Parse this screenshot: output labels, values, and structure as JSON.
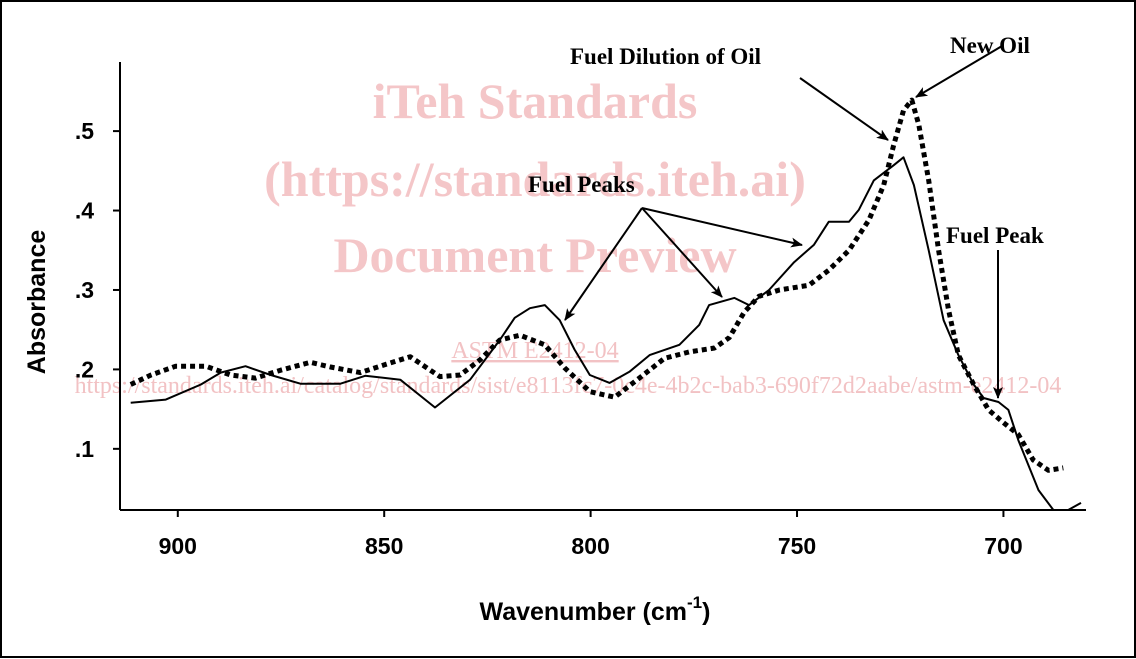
{
  "chart_data": {
    "type": "line",
    "x_label": [
      "Wavenumber (cm",
      "-1",
      ")"
    ],
    "y_label": "Absorbance",
    "xlim": [
      914,
      680
    ],
    "ylim": [
      0.023,
      0.587
    ],
    "xticks": [
      900,
      850,
      800,
      750,
      700
    ],
    "yticks": [
      {
        "value": 0.1,
        "label": ".1"
      },
      {
        "value": 0.2,
        "label": ".2"
      },
      {
        "value": 0.3,
        "label": ".3"
      },
      {
        "value": 0.4,
        "label": ".4"
      },
      {
        "value": 0.5,
        "label": ".5"
      }
    ],
    "grid": false,
    "series": [
      {
        "style": "solid",
        "color": "#000000",
        "x": [
          911.4,
          902.9,
          894.4,
          889.6,
          883.6,
          877.5,
          870.3,
          860.6,
          854.6,
          846.1,
          837.7,
          829.2,
          822.0,
          818.4,
          814.7,
          811.1,
          807.5,
          803.9,
          800.2,
          795.4,
          790.6,
          785.7,
          778.5,
          773.7,
          771.3,
          765.2,
          761.6,
          756.8,
          750.7,
          745.9,
          742.3,
          737.4,
          735.0,
          731.4,
          726.6,
          724.2,
          721.7,
          718.1,
          714.5,
          710.9,
          707.2,
          704.8,
          701.2,
          698.8,
          696.4,
          691.5,
          687.9,
          684.3,
          681.2
        ],
        "values": [
          0.158,
          0.162,
          0.181,
          0.196,
          0.204,
          0.193,
          0.182,
          0.182,
          0.192,
          0.187,
          0.152,
          0.187,
          0.237,
          0.265,
          0.277,
          0.281,
          0.262,
          0.225,
          0.193,
          0.183,
          0.197,
          0.218,
          0.231,
          0.256,
          0.281,
          0.29,
          0.281,
          0.3,
          0.335,
          0.357,
          0.386,
          0.386,
          0.401,
          0.438,
          0.457,
          0.467,
          0.432,
          0.35,
          0.262,
          0.218,
          0.181,
          0.164,
          0.159,
          0.149,
          0.111,
          0.048,
          0.023,
          0.023,
          0.032
        ]
      },
      {
        "style": "dotted",
        "color": "#000000",
        "x": [
          911.4,
          906.5,
          900.5,
          893.2,
          887.2,
          881.2,
          875.1,
          867.9,
          863.0,
          855.8,
          849.8,
          843.7,
          836.5,
          831.6,
          826.8,
          822.0,
          817.1,
          811.1,
          806.3,
          800.2,
          794.2,
          788.2,
          782.1,
          776.1,
          770.0,
          766.4,
          762.8,
          759.2,
          754.3,
          747.1,
          742.3,
          737.4,
          732.6,
          729.0,
          726.6,
          724.2,
          722.2,
          720.5,
          718.1,
          715.7,
          713.3,
          710.9,
          707.2,
          703.6,
          700.0,
          696.4,
          692.8,
          689.1,
          685.5
        ],
        "values": [
          0.181,
          0.193,
          0.204,
          0.204,
          0.193,
          0.189,
          0.199,
          0.209,
          0.203,
          0.196,
          0.206,
          0.216,
          0.191,
          0.193,
          0.212,
          0.237,
          0.243,
          0.231,
          0.202,
          0.172,
          0.165,
          0.189,
          0.214,
          0.222,
          0.227,
          0.24,
          0.272,
          0.292,
          0.3,
          0.306,
          0.325,
          0.35,
          0.388,
          0.432,
          0.482,
          0.526,
          0.539,
          0.508,
          0.438,
          0.35,
          0.275,
          0.218,
          0.181,
          0.149,
          0.133,
          0.118,
          0.086,
          0.073,
          0.076
        ]
      }
    ],
    "annotations": [
      "Fuel Dilution of Oil",
      "New Oil",
      "Fuel Peaks",
      "Fuel Peak"
    ]
  },
  "watermark": [
    "iTeh Standards",
    "(https://standards.iteh.ai)",
    "Document Preview",
    "ASTM E2412-04",
    "https://standards.iteh.ai/catalog/standards/sist/e8113fc7-0c4e-4b2c-bab3-690f72d2aabe/astm-e2412-04"
  ]
}
